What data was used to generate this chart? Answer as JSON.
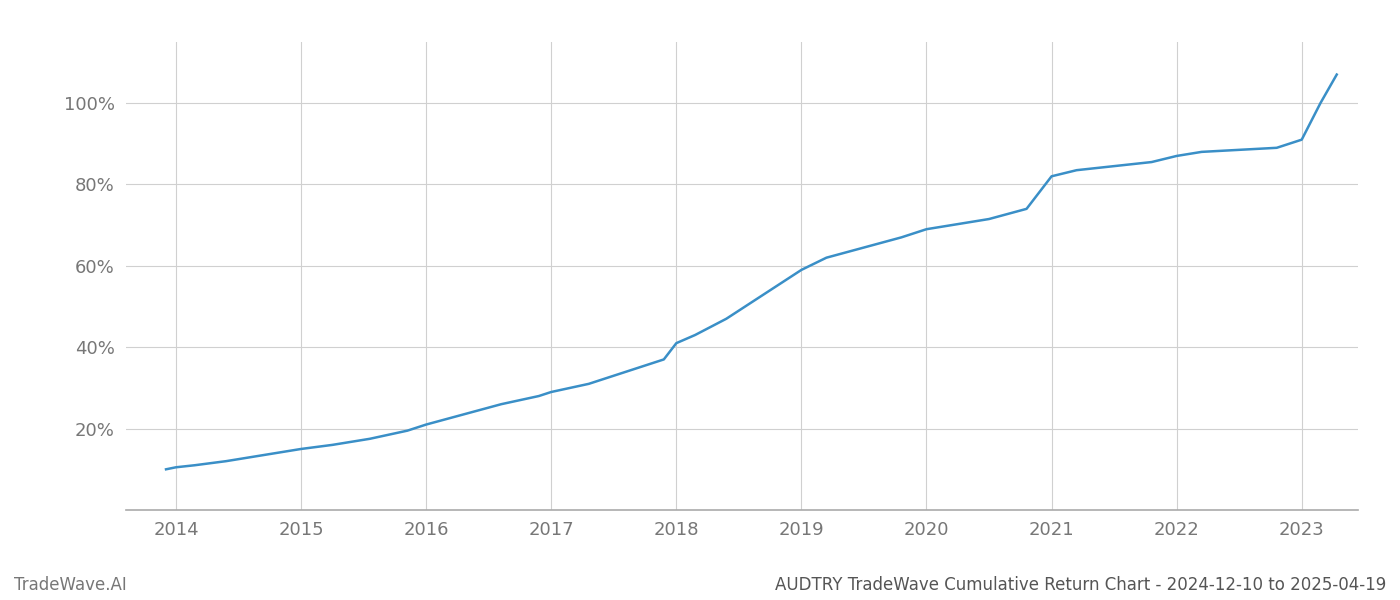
{
  "title": "AUDTRY TradeWave Cumulative Return Chart - 2024-12-10 to 2025-04-19",
  "watermark": "TradeWave.AI",
  "line_color": "#3a8fc7",
  "background_color": "#ffffff",
  "grid_color": "#d0d0d0",
  "tick_label_color": "#777777",
  "title_color": "#555555",
  "watermark_color": "#777777",
  "x_years": [
    2014,
    2015,
    2016,
    2017,
    2018,
    2019,
    2020,
    2021,
    2022,
    2023
  ],
  "y_ticks": [
    20,
    40,
    60,
    80,
    100
  ],
  "xlim": [
    2013.6,
    2023.45
  ],
  "ylim": [
    0,
    115
  ],
  "data_x": [
    2013.92,
    2014.0,
    2014.15,
    2014.4,
    2014.7,
    2015.0,
    2015.25,
    2015.55,
    2015.85,
    2016.0,
    2016.3,
    2016.6,
    2016.9,
    2017.0,
    2017.3,
    2017.6,
    2017.9,
    2018.0,
    2018.15,
    2018.4,
    2018.7,
    2019.0,
    2019.2,
    2019.5,
    2019.8,
    2020.0,
    2020.2,
    2020.5,
    2020.8,
    2021.0,
    2021.2,
    2021.5,
    2021.8,
    2022.0,
    2022.2,
    2022.5,
    2022.8,
    2023.0,
    2023.15,
    2023.28
  ],
  "data_y": [
    10,
    10.5,
    11,
    12,
    13.5,
    15,
    16,
    17.5,
    19.5,
    21,
    23.5,
    26,
    28,
    29,
    31,
    34,
    37,
    41,
    43,
    47,
    53,
    59,
    62,
    64.5,
    67,
    69,
    70,
    71.5,
    74,
    82,
    83.5,
    84.5,
    85.5,
    87,
    88,
    88.5,
    89,
    91,
    100,
    107
  ],
  "line_width": 1.8,
  "tick_fontsize": 13,
  "title_fontsize": 12,
  "watermark_fontsize": 12
}
